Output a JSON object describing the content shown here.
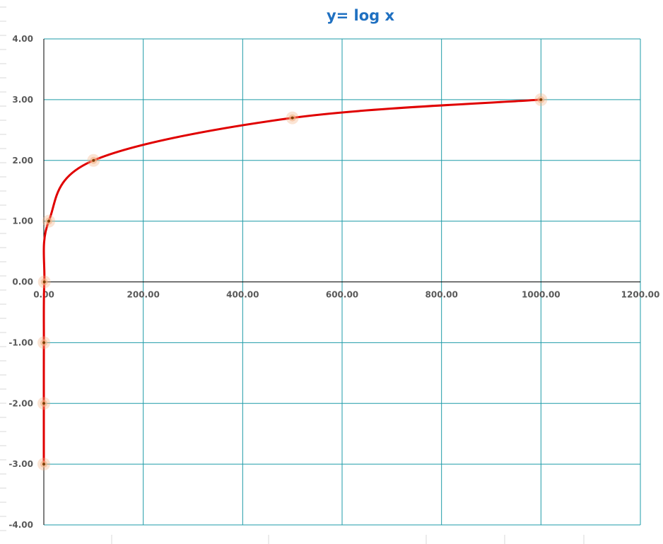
{
  "colors": {
    "title": "#1F70C1",
    "gridline": "#1E9BA8",
    "axis": "#000000",
    "line": "#E00000",
    "marker_glow": "#F4B183",
    "marker_core": "#7F3F00",
    "background": "#FFFFFF",
    "sheet_lines": "#D9D9D9"
  },
  "chart_data": {
    "type": "scatter",
    "title": "y= log x",
    "xlabel": "",
    "ylabel": "",
    "xlim": [
      0,
      1200
    ],
    "ylim": [
      -4,
      4
    ],
    "grid": true,
    "smooth_line": true,
    "x_ticks": [
      0,
      200,
      400,
      600,
      800,
      1000,
      1200
    ],
    "x_tick_labels": [
      "0.00",
      "200.00",
      "400.00",
      "600.00",
      "800.00",
      "1000.00",
      "1200.00"
    ],
    "y_ticks": [
      4,
      3,
      2,
      1,
      0,
      -1,
      -2,
      -3,
      -4
    ],
    "y_tick_labels": [
      "4.00",
      "3.00",
      "2.00",
      "1.00",
      "0.00",
      "-1.00",
      "-2.00",
      "-3.00",
      "-4.00"
    ],
    "series": [
      {
        "x": [
          0.001,
          0.01,
          0.1,
          1,
          10,
          100,
          500,
          1000
        ],
        "y": [
          -3,
          -2,
          -1,
          0,
          1,
          2,
          2.7,
          3
        ]
      }
    ]
  }
}
